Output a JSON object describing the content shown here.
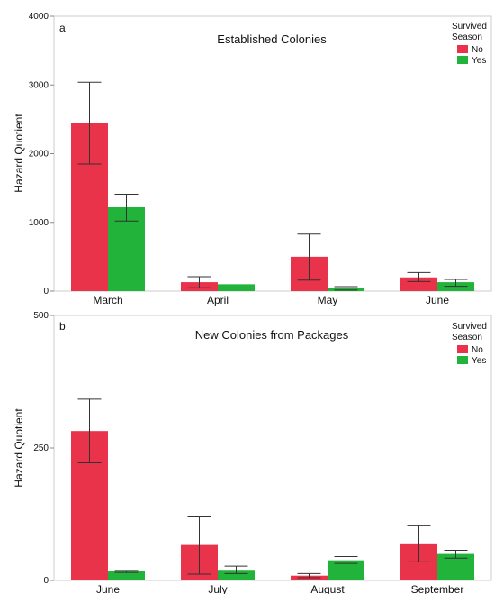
{
  "chart_data": [
    {
      "type": "bar",
      "panel_label": "a",
      "title": "Established Colonies",
      "ylabel": "Hazard Quotient",
      "xlabel": "",
      "ylim": [
        0,
        4000
      ],
      "yticks": [
        0,
        1000,
        2000,
        3000,
        4000
      ],
      "categories": [
        "March",
        "April",
        "May",
        "June"
      ],
      "legend": {
        "title": "Survived Season",
        "placement": "top-right"
      },
      "series": [
        {
          "name": "No",
          "color": "#e8334a",
          "values": [
            2450,
            130,
            500,
            200
          ],
          "err_low": [
            1850,
            50,
            160,
            140
          ],
          "err_high": [
            3040,
            210,
            830,
            270
          ]
        },
        {
          "name": "Yes",
          "color": "#22b33a",
          "values": [
            1220,
            100,
            40,
            130
          ],
          "err_low": [
            1020,
            100,
            15,
            70
          ],
          "err_high": [
            1410,
            100,
            65,
            170
          ]
        }
      ],
      "grid": false
    },
    {
      "type": "bar",
      "panel_label": "b",
      "title": "New Colonies from Packages",
      "ylabel": "Hazard Quotient",
      "xlabel": "",
      "ylim": [
        0,
        500
      ],
      "yticks": [
        0,
        250,
        500
      ],
      "categories": [
        "June",
        "July",
        "August",
        "September"
      ],
      "legend": {
        "title": "Survived Season",
        "placement": "top-right"
      },
      "series": [
        {
          "name": "No",
          "color": "#e8334a",
          "values": [
            282,
            67,
            9,
            70
          ],
          "err_low": [
            222,
            12,
            5,
            35
          ],
          "err_high": [
            342,
            120,
            13,
            103
          ]
        },
        {
          "name": "Yes",
          "color": "#22b33a",
          "values": [
            17,
            20,
            38,
            50
          ],
          "err_low": [
            15,
            13,
            32,
            42
          ],
          "err_high": [
            19,
            27,
            45,
            57
          ]
        }
      ],
      "grid": false
    }
  ]
}
